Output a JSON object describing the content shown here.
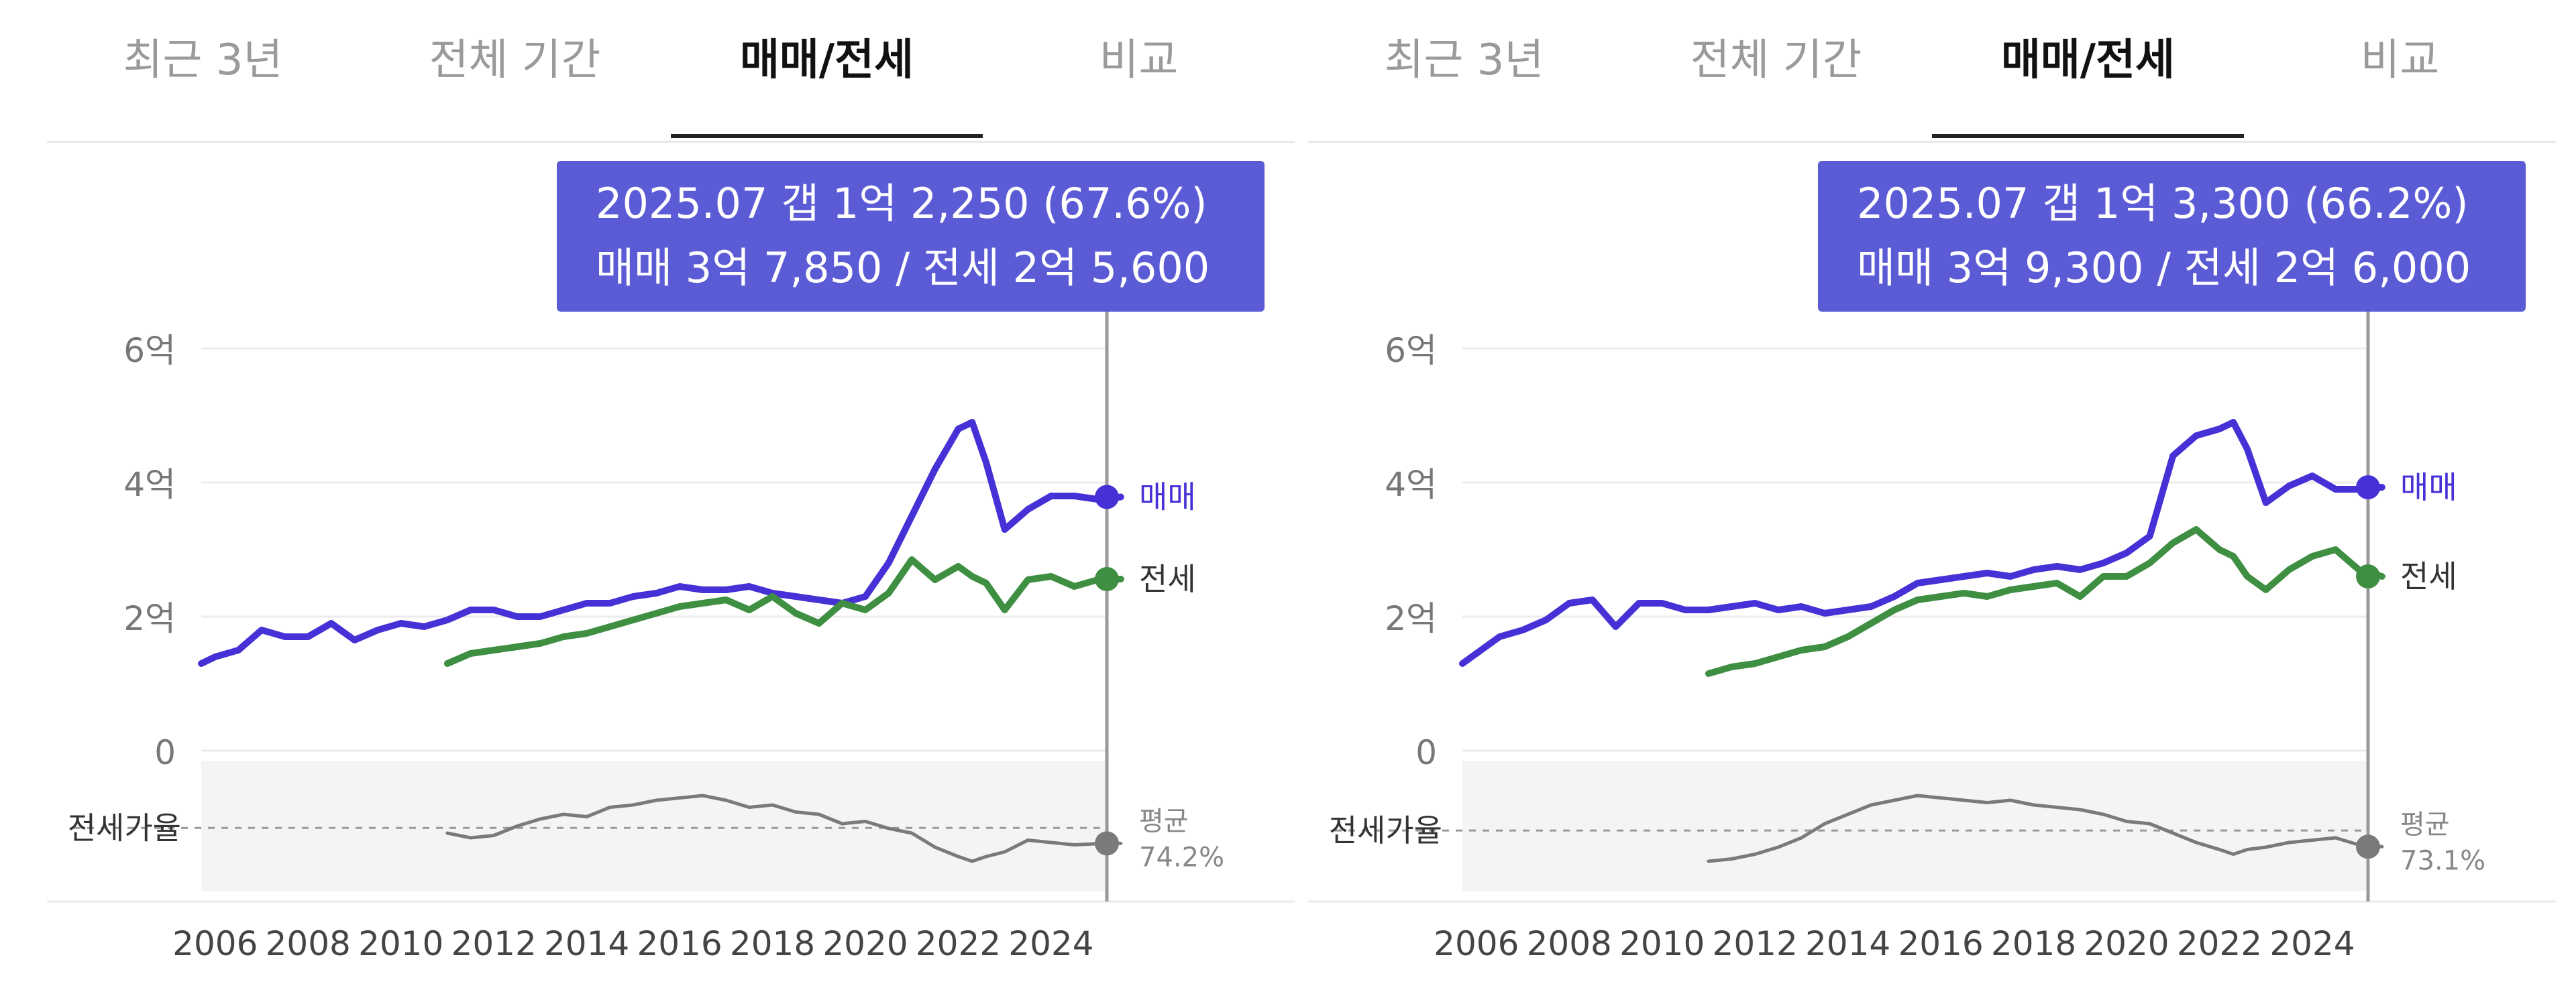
{
  "tabs": [
    {
      "label": "최근 3년",
      "active": false
    },
    {
      "label": "전체 기간",
      "active": false
    },
    {
      "label": "매매/전세",
      "active": true
    },
    {
      "label": "비교",
      "active": false
    }
  ],
  "colors": {
    "sale": "#4631d6",
    "jeonse": "#3f8f43",
    "ratio": "#7a7a7a",
    "tooltip": "#5b5bd6",
    "band": "#f4f4f4"
  },
  "panels": [
    {
      "tooltip": {
        "line1": "2025.07  갭 1억 2,250 (67.6%)",
        "line2": "매매 3억 7,850 / 전세 2억 5,600"
      },
      "end_labels": {
        "sale": "매매",
        "jeonse": "전세",
        "avg_label": "평균",
        "avg_value": "74.2%"
      },
      "ratio_label": "전세가율"
    },
    {
      "tooltip": {
        "line1": "2025.07  갭 1억 3,300 (66.2%)",
        "line2": "매매 3억 9,300 / 전세 2억 6,000"
      },
      "end_labels": {
        "sale": "매매",
        "jeonse": "전세",
        "avg_label": "평균",
        "avg_value": "73.1%"
      },
      "ratio_label": "전세가율"
    }
  ],
  "chart_data": [
    {
      "type": "line",
      "x": [
        2005.7,
        2006,
        2006.5,
        2007,
        2007.5,
        2008,
        2008.5,
        2009,
        2009.5,
        2010,
        2010.5,
        2011,
        2011.5,
        2012,
        2012.5,
        2013,
        2013.5,
        2014,
        2014.5,
        2015,
        2015.5,
        2016,
        2016.5,
        2017,
        2017.5,
        2018,
        2018.5,
        2019,
        2019.5,
        2020,
        2020.5,
        2021,
        2021.5,
        2022,
        2022.3,
        2022.6,
        2023,
        2023.5,
        2024,
        2024.5,
        2025,
        2025.5
      ],
      "yticks": [
        {
          "v": 0,
          "label": "0"
        },
        {
          "v": 2,
          "label": "2억"
        },
        {
          "v": 4,
          "label": "4억"
        },
        {
          "v": 6,
          "label": "6억"
        }
      ],
      "xticks": [
        "2006",
        "2008",
        "2010",
        "2012",
        "2014",
        "2016",
        "2018",
        "2020",
        "2022",
        "2024"
      ],
      "xlim": [
        2005.7,
        2026.5
      ],
      "ylim": [
        0,
        6
      ],
      "series": [
        {
          "name": "매매",
          "values": [
            1.3,
            1.4,
            1.5,
            1.8,
            1.7,
            1.7,
            1.9,
            1.65,
            1.8,
            1.9,
            1.85,
            1.95,
            2.1,
            2.1,
            2.0,
            2.0,
            2.1,
            2.2,
            2.2,
            2.3,
            2.35,
            2.45,
            2.4,
            2.4,
            2.45,
            2.35,
            2.3,
            2.25,
            2.2,
            2.3,
            2.8,
            3.5,
            4.2,
            4.8,
            4.9,
            4.3,
            3.3,
            3.6,
            3.8,
            3.8,
            3.75,
            3.785
          ]
        },
        {
          "name": "전세",
          "values": [
            null,
            null,
            null,
            null,
            null,
            null,
            null,
            null,
            null,
            null,
            null,
            1.3,
            1.45,
            1.5,
            1.55,
            1.6,
            1.7,
            1.75,
            1.85,
            1.95,
            2.05,
            2.15,
            2.2,
            2.25,
            2.1,
            2.3,
            2.05,
            1.9,
            2.2,
            2.1,
            2.35,
            2.85,
            2.55,
            2.75,
            2.6,
            2.5,
            2.1,
            2.55,
            2.6,
            2.45,
            2.55,
            2.56
          ]
        },
        {
          "name": "전세가율",
          "values": [
            null,
            null,
            null,
            null,
            null,
            null,
            null,
            null,
            null,
            null,
            null,
            0.72,
            0.7,
            0.71,
            0.75,
            0.78,
            0.8,
            0.79,
            0.83,
            0.84,
            0.86,
            0.87,
            0.88,
            0.86,
            0.83,
            0.84,
            0.81,
            0.8,
            0.76,
            0.77,
            0.74,
            0.72,
            0.66,
            0.62,
            0.6,
            0.62,
            0.64,
            0.69,
            0.68,
            0.67,
            0.675,
            0.676
          ]
        }
      ],
      "ratio_average": 0.742
    },
    {
      "type": "line",
      "x": [
        2005.7,
        2006,
        2006.5,
        2007,
        2007.5,
        2008,
        2008.5,
        2009,
        2009.5,
        2010,
        2010.5,
        2011,
        2011.5,
        2012,
        2012.5,
        2013,
        2013.5,
        2014,
        2014.5,
        2015,
        2015.5,
        2016,
        2016.5,
        2017,
        2017.5,
        2018,
        2018.5,
        2019,
        2019.5,
        2020,
        2020.5,
        2021,
        2021.5,
        2022,
        2022.3,
        2022.6,
        2023,
        2023.5,
        2024,
        2024.5,
        2025,
        2025.5
      ],
      "yticks": [
        {
          "v": 0,
          "label": "0"
        },
        {
          "v": 2,
          "label": "2억"
        },
        {
          "v": 4,
          "label": "4억"
        },
        {
          "v": 6,
          "label": "6억"
        }
      ],
      "xticks": [
        "2006",
        "2008",
        "2010",
        "2012",
        "2014",
        "2016",
        "2018",
        "2020",
        "2022",
        "2024"
      ],
      "xlim": [
        2005.7,
        2026.5
      ],
      "ylim": [
        0,
        6
      ],
      "series": [
        {
          "name": "매매",
          "values": [
            1.3,
            1.45,
            1.7,
            1.8,
            1.95,
            2.2,
            2.25,
            1.85,
            2.2,
            2.2,
            2.1,
            2.1,
            2.15,
            2.2,
            2.1,
            2.15,
            2.05,
            2.1,
            2.15,
            2.3,
            2.5,
            2.55,
            2.6,
            2.65,
            2.6,
            2.7,
            2.75,
            2.7,
            2.8,
            2.95,
            3.2,
            4.4,
            4.7,
            4.8,
            4.9,
            4.5,
            3.7,
            3.95,
            4.1,
            3.9,
            3.9,
            3.93
          ]
        },
        {
          "name": "전세",
          "values": [
            null,
            null,
            null,
            null,
            null,
            null,
            null,
            null,
            null,
            null,
            null,
            1.15,
            1.25,
            1.3,
            1.4,
            1.5,
            1.55,
            1.7,
            1.9,
            2.1,
            2.25,
            2.3,
            2.35,
            2.3,
            2.4,
            2.45,
            2.5,
            2.3,
            2.6,
            2.6,
            2.8,
            3.1,
            3.3,
            3.0,
            2.9,
            2.6,
            2.4,
            2.7,
            2.9,
            3.0,
            2.7,
            2.6
          ]
        },
        {
          "name": "전세가율",
          "values": [
            null,
            null,
            null,
            null,
            null,
            null,
            null,
            null,
            null,
            null,
            null,
            0.6,
            0.61,
            0.63,
            0.66,
            0.7,
            0.76,
            0.8,
            0.84,
            0.86,
            0.88,
            0.87,
            0.86,
            0.85,
            0.86,
            0.84,
            0.83,
            0.82,
            0.8,
            0.77,
            0.76,
            0.72,
            0.68,
            0.65,
            0.63,
            0.65,
            0.66,
            0.68,
            0.69,
            0.7,
            0.67,
            0.662
          ]
        }
      ],
      "ratio_average": 0.731
    }
  ]
}
